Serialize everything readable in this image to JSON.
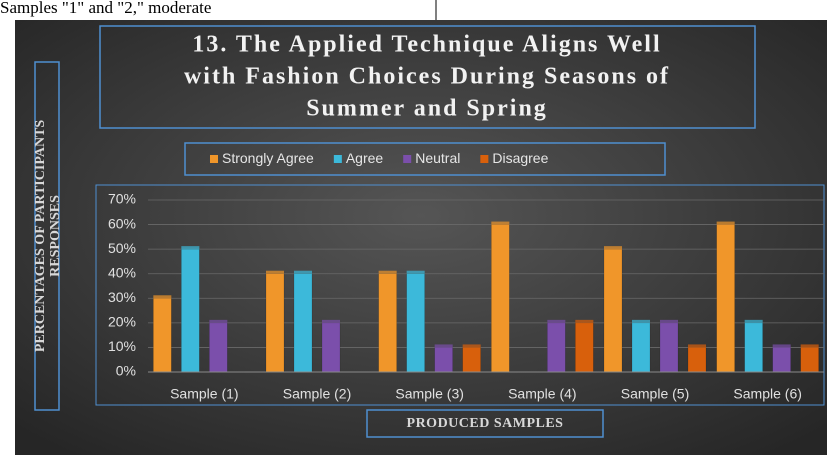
{
  "page_header": "Samples \"1\" and \"2,\" moderate",
  "chart_data": {
    "type": "bar",
    "title": [
      "13. The Applied Technique Aligns Well",
      "with Fashion Choices During Seasons of",
      "Summer and Spring"
    ],
    "xlabel": "PRODUCED SAMPLES",
    "ylabel": [
      "PERCENTAGES OF PARTICIPANTS",
      "RESPONSES"
    ],
    "categories": [
      "Sample (1)",
      "Sample (2)",
      "Sample (3)",
      "Sample (4)",
      "Sample (5)",
      "Sample (6)"
    ],
    "series": [
      {
        "name": "Strongly Agree",
        "color": "#f0962a",
        "values": [
          30,
          40,
          40,
          60,
          50,
          60
        ]
      },
      {
        "name": "Agree",
        "color": "#3cb9da",
        "values": [
          50,
          40,
          40,
          0,
          20,
          20
        ]
      },
      {
        "name": "Neutral",
        "color": "#7b4fab",
        "values": [
          20,
          20,
          10,
          20,
          20,
          10
        ]
      },
      {
        "name": "Disagree",
        "color": "#d8600c",
        "values": [
          0,
          0,
          10,
          20,
          10,
          10
        ]
      }
    ],
    "ylim": [
      0,
      70
    ],
    "yticks": [
      {
        "value": 0,
        "label": "0%"
      },
      {
        "value": 10,
        "label": "10%"
      },
      {
        "value": 20,
        "label": "20%"
      },
      {
        "value": 30,
        "label": "30%"
      },
      {
        "value": 40,
        "label": "40%"
      },
      {
        "value": 50,
        "label": "50%"
      },
      {
        "value": 60,
        "label": "60%"
      },
      {
        "value": 70,
        "label": "70%"
      }
    ],
    "grid": true,
    "legend": "top"
  }
}
